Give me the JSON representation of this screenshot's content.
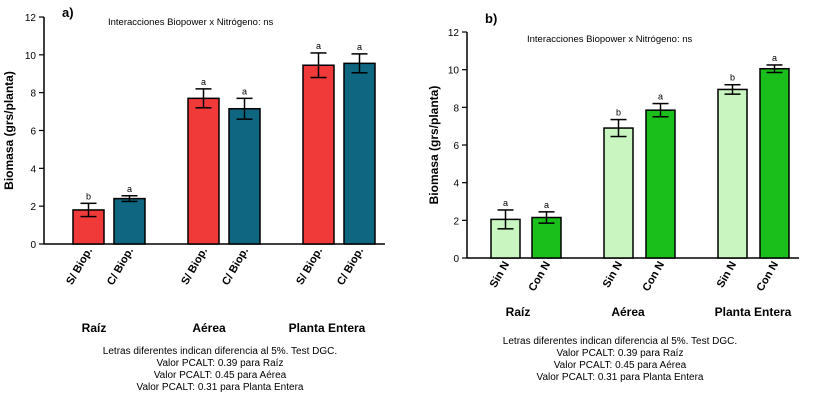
{
  "chart_data": [
    {
      "type": "bar",
      "panel_label": "a)",
      "title": "Interacciones Biopower  x Nitrógeno: ns",
      "ylabel": "Biomasa (grs/planta)",
      "xlabel": "",
      "ylim": [
        0,
        12
      ],
      "yticks": [
        0,
        2,
        4,
        6,
        8,
        10,
        12
      ],
      "groups": [
        "Raíz",
        "Aérea",
        "Planta Entera"
      ],
      "tick_labels": [
        "S/ Biop.",
        "C/ Biop."
      ],
      "series": [
        {
          "name": "S/ Biop.",
          "color": "#f03a3a",
          "values": [
            1.8,
            7.7,
            9.45
          ],
          "errors": [
            0.35,
            0.5,
            0.65
          ],
          "letters": [
            "b",
            "a",
            "a"
          ]
        },
        {
          "name": "C/ Biop.",
          "color": "#0e6680",
          "values": [
            2.4,
            7.15,
            9.55
          ],
          "errors": [
            0.15,
            0.55,
            0.5
          ],
          "letters": [
            "a",
            "a",
            "a"
          ]
        }
      ],
      "notes": [
        "Letras diferentes  indican diferencia al 5%. Test DGC.",
        "Valor PCALT: 0.39 para Raíz",
        "Valor PCALT: 0.45 para Aérea",
        "Valor PCALT: 0.31 para Planta Entera"
      ]
    },
    {
      "type": "bar",
      "panel_label": "b)",
      "title": "Interacciones Biopower  x Nitrógeno: ns",
      "ylabel": "Biomasa (grs/planta)",
      "xlabel": "",
      "ylim": [
        0,
        12
      ],
      "yticks": [
        0,
        2,
        4,
        6,
        8,
        10,
        12
      ],
      "groups": [
        "Raíz",
        "Aérea",
        "Planta Entera"
      ],
      "tick_labels": [
        "Sin N",
        "Con N"
      ],
      "series": [
        {
          "name": "Sin N",
          "color": "#c8f5c0",
          "values": [
            2.05,
            6.9,
            8.95
          ],
          "errors": [
            0.5,
            0.45,
            0.25
          ],
          "letters": [
            "a",
            "b",
            "b"
          ]
        },
        {
          "name": "Con N",
          "color": "#1bbf1b",
          "values": [
            2.15,
            7.85,
            10.05
          ],
          "errors": [
            0.3,
            0.35,
            0.2
          ],
          "letters": [
            "a",
            "a",
            "a"
          ]
        }
      ],
      "notes": [
        "Letras diferentes  indican diferencia al 5%. Test DGC.",
        "Valor PCALT: 0.39 para Raíz",
        "Valor PCALT: 0.45 para Aérea",
        "Valor PCALT: 0.31 para Planta Entera"
      ]
    }
  ]
}
